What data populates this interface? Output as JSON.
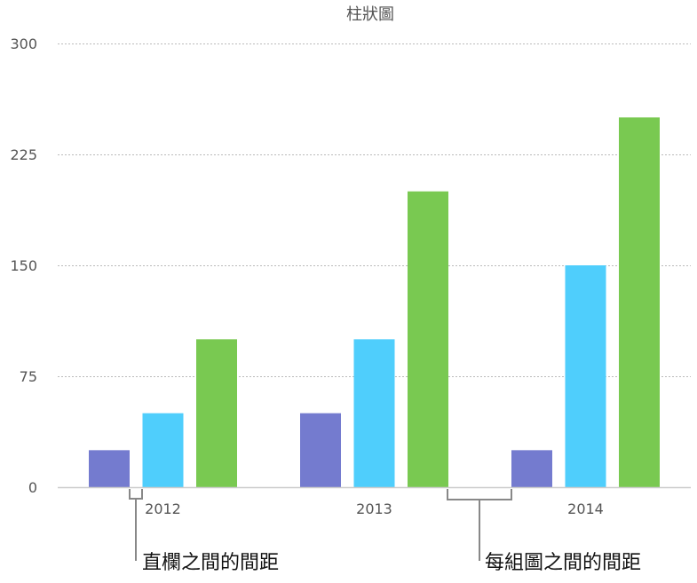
{
  "chart_data": {
    "type": "bar",
    "title": "柱狀圖",
    "xlabel": "",
    "ylabel": "",
    "categories": [
      "2012",
      "2013",
      "2014"
    ],
    "series": [
      {
        "values": [
          25,
          50,
          25
        ],
        "color": "#747BCF"
      },
      {
        "values": [
          50,
          100,
          150
        ],
        "color": "#4FCEFC"
      },
      {
        "values": [
          100,
          200,
          250
        ],
        "color": "#79C951"
      }
    ],
    "ylim": [
      0,
      300
    ],
    "yticks": [
      "0",
      "75",
      "150",
      "225",
      "300"
    ],
    "grid": true,
    "legend": "none"
  },
  "annotations": {
    "column_gap": "直欄之間的間距",
    "group_gap": "每組圖之間的間距"
  }
}
